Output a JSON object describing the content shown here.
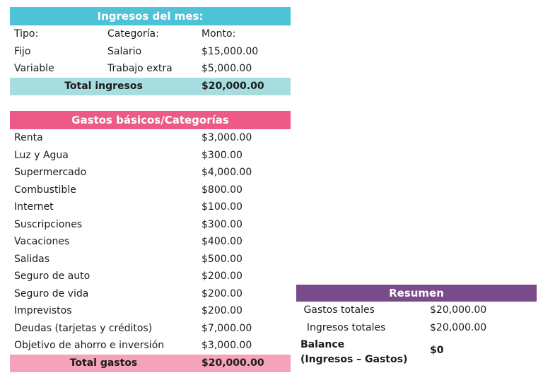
{
  "ingresos": {
    "title": "Ingresos del mes:",
    "headers": [
      "Tipo:",
      "Categoría:",
      "Monto:"
    ],
    "rows": [
      [
        "Fijo",
        "Salario",
        "$15,000.00"
      ],
      [
        "Variable",
        "Trabajo extra",
        "$5,000.00"
      ]
    ],
    "total_label": "Total ingresos",
    "total_value": "$20,000.00"
  },
  "gastos": {
    "title": "Gastos básicos/Categorías",
    "rows": [
      [
        "Renta",
        "$3,000.00"
      ],
      [
        "Luz y Agua",
        "$300.00"
      ],
      [
        "Supermercado",
        "$4,000.00"
      ],
      [
        "Combustible",
        "$800.00"
      ],
      [
        "Internet",
        "$100.00"
      ],
      [
        "Suscripciones",
        "$300.00"
      ],
      [
        "Vacaciones",
        "$400.00"
      ],
      [
        "Salidas",
        "$500.00"
      ],
      [
        "Seguro de auto",
        "$200.00"
      ],
      [
        "Seguro de vida",
        "$200.00"
      ],
      [
        "Imprevistos",
        "$200.00"
      ],
      [
        "Deudas (tarjetas y créditos)",
        "$7,000.00"
      ],
      [
        "Objetivo de ahorro e inversión",
        "$3,000.00"
      ]
    ],
    "total_label": "Total gastos",
    "total_value": "$20,000.00"
  },
  "resumen": {
    "title": "Resumen",
    "rows": [
      [
        " Gastos totales",
        "$20,000.00"
      ],
      [
        "  Ingresos totales",
        "$20,000.00"
      ]
    ],
    "balance_line1": "Balance",
    "balance_line2": "(Ingresos – Gastos)",
    "balance_value": "$0"
  },
  "colors": {
    "ingresos_header": "#4ec2d6",
    "ingresos_total": "#a8dde0",
    "gastos_header": "#ee5a87",
    "gastos_total": "#f4a3b8",
    "resumen_header": "#7a4b8a"
  }
}
